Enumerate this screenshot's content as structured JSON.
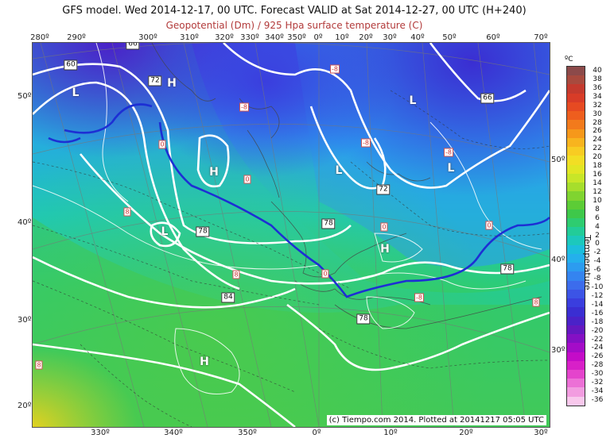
{
  "title": "GFS model. Wed 2014-12-17, 00 UTC. Forecast VALID at Sat 2014-12-27, 00 UTC (H+240)",
  "subtitle": "Geopotential (Dm) / 925 Hpa surface temperature (C)",
  "top_longitudes": [
    "280º",
    "290º",
    "300º",
    "310º",
    "320º",
    "330º",
    "340º",
    "350º",
    "0º",
    "10º",
    "20º",
    "30º",
    "40º",
    "50º",
    "60º",
    "70º"
  ],
  "bottom_longitudes": [
    "330º",
    "340º",
    "350º",
    "0º",
    "10º",
    "20º",
    "30º"
  ],
  "left_latitudes": [
    "50º",
    "40º",
    "30º",
    "20º"
  ],
  "right_latitudes": [
    "50º",
    "40º",
    "30º"
  ],
  "pressure_centers": [
    "L",
    "H",
    "L",
    "H",
    "L",
    "L",
    "L",
    "H",
    "H",
    "H"
  ],
  "geopotential_labels": [
    "60",
    "72",
    "66",
    "72",
    "78",
    "78",
    "84",
    "78",
    "78",
    "66"
  ],
  "temperature_labels": [
    "0",
    "-8",
    "-8",
    "-8",
    "-8",
    "8",
    "8",
    "0",
    "0",
    "0",
    "0",
    "8",
    "-8",
    "8"
  ],
  "colorbar": {
    "unit": "ºC",
    "label": "Temperature",
    "ticks": [
      "40",
      "38",
      "36",
      "34",
      "32",
      "30",
      "28",
      "26",
      "24",
      "22",
      "20",
      "18",
      "16",
      "14",
      "12",
      "10",
      "8",
      "6",
      "4",
      "2",
      "0",
      "-2",
      "-4",
      "-6",
      "-8",
      "-10",
      "-12",
      "-14",
      "-16",
      "-18",
      "-20",
      "-22",
      "-24",
      "-26",
      "-28",
      "-30",
      "-32",
      "-34",
      "-36"
    ],
    "colors": [
      "#8c4a4a",
      "#a84a3e",
      "#c43a2e",
      "#d83c28",
      "#e64a22",
      "#ee5e1e",
      "#f27a1c",
      "#f6981a",
      "#f8b41e",
      "#f8cc22",
      "#f2de24",
      "#e2e624",
      "#c8e628",
      "#a6de2c",
      "#80d430",
      "#5ccc36",
      "#3ec84a",
      "#2ecc70",
      "#22cc98",
      "#1cc8bc",
      "#1cbedc",
      "#24b0ec",
      "#2c9cf0",
      "#3484f0",
      "#3c6cec",
      "#3c54e6",
      "#3a3ede",
      "#3a2ed2",
      "#4a22c8",
      "#6418c0",
      "#8410c4",
      "#a40cc8",
      "#c40cc8",
      "#d820c8",
      "#e444cc",
      "#ec70d6",
      "#f29ce0",
      "#f8c8ec"
    ]
  },
  "credit": "(c) Tiempo.com 2014. Plotted at 20141217 05:05 UTC"
}
